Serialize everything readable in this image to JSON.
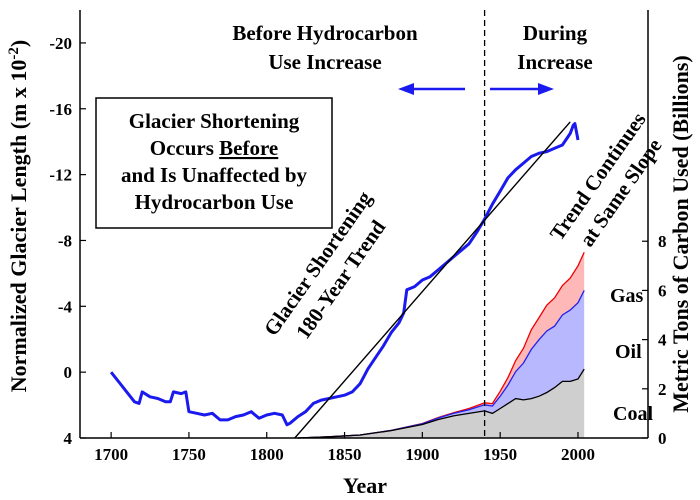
{
  "chart_data": {
    "type": "line",
    "xlabel": "Year",
    "ylabel": "Normalized Glacier Length (m x 10",
    "ylabel_sup": "-2",
    "ylabel_end": ")",
    "y2label": "Metric Tons of Carbon Used (Billions)",
    "xlim": [
      1680,
      2045
    ],
    "ylim": [
      4,
      -22
    ],
    "y2lim": [
      0,
      17.4
    ],
    "x_ticks": [
      "1700",
      "1750",
      "1800",
      "1850",
      "1900",
      "1950",
      "2000"
    ],
    "y_ticks": [
      "-20",
      "-16",
      "-12",
      "-8",
      "-4",
      "0",
      "4"
    ],
    "y2_ticks": [
      "0",
      "2",
      "4",
      "6",
      "8"
    ],
    "divider_year": 1940,
    "annotations": {
      "before_line1": "Before Hydrocarbon",
      "before_line2": "Use Increase",
      "during_line1": "During",
      "during_line2": "Increase",
      "trend_line1": "Glacier Shortening",
      "trend_line2": "180-Year Trend",
      "continues_line1": "Trend Continues",
      "continues_line2": "at Same Slope",
      "box_line1": "Glacier Shortening",
      "box_line2_pre": "Occurs ",
      "box_line2_under": "Before",
      "box_line3": "and Is Unaffected by",
      "box_line4": "Hydrocarbon Use"
    },
    "series": [
      {
        "name": "Glacier length",
        "axis": "left",
        "color": "#1a1aee",
        "x": [
          1700,
          1705,
          1710,
          1715,
          1718,
          1720,
          1725,
          1730,
          1735,
          1738,
          1740,
          1745,
          1748,
          1750,
          1755,
          1760,
          1765,
          1770,
          1775,
          1780,
          1785,
          1790,
          1795,
          1800,
          1805,
          1810,
          1813,
          1815,
          1820,
          1825,
          1830,
          1835,
          1840,
          1845,
          1850,
          1855,
          1860,
          1865,
          1870,
          1875,
          1880,
          1885,
          1888,
          1890,
          1895,
          1900,
          1905,
          1910,
          1915,
          1920,
          1925,
          1930,
          1935,
          1940,
          1945,
          1950,
          1955,
          1960,
          1965,
          1970,
          1975,
          1980,
          1985,
          1990,
          1995,
          1997,
          1998,
          2000
        ],
        "y": [
          0,
          0.6,
          1.2,
          1.8,
          1.9,
          1.2,
          1.5,
          1.6,
          1.8,
          1.8,
          1.2,
          1.3,
          1.2,
          2.4,
          2.5,
          2.6,
          2.5,
          2.9,
          2.9,
          2.7,
          2.6,
          2.4,
          2.8,
          2.6,
          2.5,
          2.6,
          3.2,
          3.1,
          2.7,
          2.4,
          1.9,
          1.7,
          1.6,
          1.5,
          1.4,
          1.2,
          0.7,
          -0.2,
          -0.9,
          -1.6,
          -2.4,
          -3.0,
          -3.6,
          -5.0,
          -5.2,
          -5.6,
          -5.8,
          -6.2,
          -6.6,
          -7.0,
          -7.4,
          -7.8,
          -8.5,
          -9.3,
          -10.2,
          -11.0,
          -11.8,
          -12.3,
          -12.7,
          -13.1,
          -13.3,
          -13.4,
          -13.6,
          -13.8,
          -14.5,
          -15.0,
          -15.1,
          -14.1
        ]
      },
      {
        "name": "180-year trend",
        "axis": "left",
        "color": "#000000",
        "x": [
          1818,
          1995
        ],
        "y": [
          4,
          -15.2
        ]
      }
    ],
    "stacked": {
      "x": [
        1820,
        1840,
        1860,
        1880,
        1900,
        1910,
        1920,
        1930,
        1940,
        1945,
        1950,
        1955,
        1960,
        1965,
        1970,
        1975,
        1980,
        1985,
        1990,
        1995,
        2000,
        2004
      ],
      "coal": [
        0.0,
        0.05,
        0.12,
        0.3,
        0.55,
        0.75,
        0.9,
        1.0,
        1.1,
        1.0,
        1.2,
        1.4,
        1.6,
        1.55,
        1.6,
        1.7,
        1.85,
        2.05,
        2.3,
        2.3,
        2.4,
        2.8
      ],
      "oil": [
        0.0,
        0.0,
        0.0,
        0.01,
        0.03,
        0.06,
        0.1,
        0.15,
        0.25,
        0.3,
        0.5,
        0.75,
        1.1,
        1.5,
        2.0,
        2.3,
        2.5,
        2.5,
        2.7,
        2.9,
        3.1,
        3.2
      ],
      "gas": [
        0.0,
        0.0,
        0.0,
        0.0,
        0.01,
        0.02,
        0.03,
        0.05,
        0.08,
        0.1,
        0.2,
        0.3,
        0.45,
        0.6,
        0.8,
        0.9,
        1.05,
        1.15,
        1.2,
        1.3,
        1.5,
        1.55
      ],
      "labels": [
        "Gas",
        "Oil",
        "Coal"
      ],
      "fill_colors": [
        "#ffb8b8",
        "#b8b8ff",
        "#cfcfcf"
      ],
      "edge_colors": [
        "#ee0000",
        "#2222ee",
        "#000000"
      ]
    }
  }
}
